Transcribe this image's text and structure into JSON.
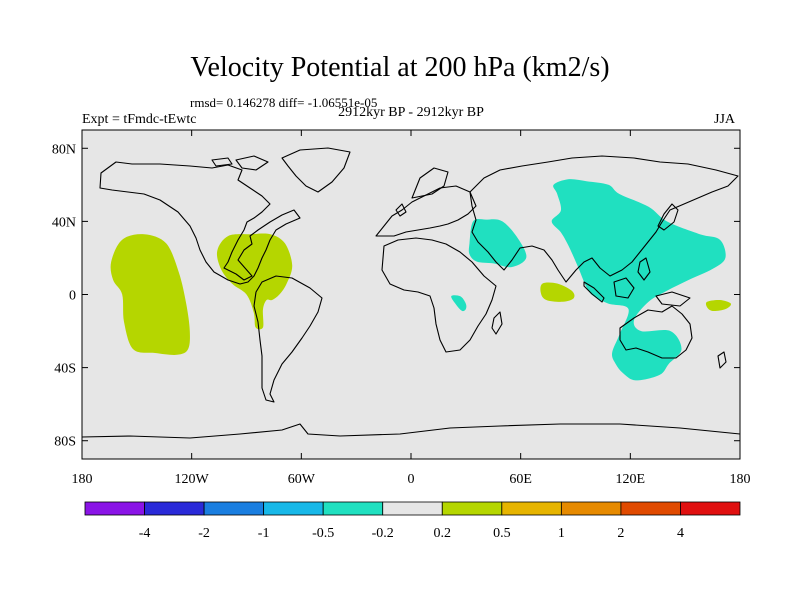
{
  "title": "Velocity Potential at 200 hPa (km2/s)",
  "stats_line": "rmsd= 0.146278 diff= -1.06551e-05",
  "left_label": "Expt = tFmdc-tEwtc",
  "center_label": "2912kyr BP - 2912kyr BP",
  "right_label": "JJA",
  "colors": {
    "ocean_bg": "#e6e6e6",
    "coast": "#000000",
    "positive_fill": "#b5d600",
    "negative_fill": "#20e0c0"
  },
  "chart_data": {
    "type": "filled-contour-map",
    "projection": "cylindrical-equidistant",
    "lon_range": [
      -180,
      180
    ],
    "lat_range": [
      -90,
      90
    ],
    "x_ticks": [
      {
        "lon": -180,
        "label": "180"
      },
      {
        "lon": -120,
        "label": "120W"
      },
      {
        "lon": -60,
        "label": "60W"
      },
      {
        "lon": 0,
        "label": "0"
      },
      {
        "lon": 60,
        "label": "60E"
      },
      {
        "lon": 120,
        "label": "120E"
      },
      {
        "lon": 180,
        "label": "180"
      }
    ],
    "y_ticks": [
      {
        "lat": 80,
        "label": "80N"
      },
      {
        "lat": 40,
        "label": "40N"
      },
      {
        "lat": 0,
        "label": "0"
      },
      {
        "lat": -40,
        "label": "40S"
      },
      {
        "lat": -80,
        "label": "80S"
      }
    ],
    "colorbar": {
      "colors": [
        "#8a14e6",
        "#2a2ad8",
        "#1a7ee0",
        "#18b8e8",
        "#20e0c0",
        "#e6e6e6",
        "#b5d600",
        "#e6b400",
        "#e68a00",
        "#e04a00",
        "#e01010"
      ],
      "labels": [
        "-4",
        "-2",
        "-1",
        "-0.5",
        "-0.2",
        "0.2",
        "0.5",
        "1",
        "2",
        "4"
      ]
    },
    "regions": [
      {
        "name": "central-pacific-positive",
        "level": "0.2 to 0.5",
        "outline": [
          [
            -158,
            30
          ],
          [
            -146,
            33
          ],
          [
            -134,
            28
          ],
          [
            -127,
            12
          ],
          [
            -123,
            -5
          ],
          [
            -121,
            -20
          ],
          [
            -122,
            -30
          ],
          [
            -128,
            -33
          ],
          [
            -140,
            -32
          ],
          [
            -152,
            -30
          ],
          [
            -157,
            -15
          ],
          [
            -158,
            0
          ],
          [
            -163,
            8
          ],
          [
            -164,
            18
          ]
        ]
      },
      {
        "name": "central-america-positive",
        "level": "0.2 to 0.5",
        "outline": [
          [
            -100,
            32
          ],
          [
            -88,
            33
          ],
          [
            -77,
            33
          ],
          [
            -69,
            28
          ],
          [
            -65,
            16
          ],
          [
            -68,
            6
          ],
          [
            -72,
            0
          ],
          [
            -76,
            -3
          ],
          [
            -79,
            -3
          ],
          [
            -81,
            -8
          ],
          [
            -81,
            -18
          ],
          [
            -85,
            -18
          ],
          [
            -86,
            -10
          ],
          [
            -90,
            0
          ],
          [
            -98,
            6
          ],
          [
            -104,
            14
          ],
          [
            -106,
            24
          ]
        ]
      },
      {
        "name": "indian-ocean-positive",
        "level": "0.2 to 0.5",
        "outline": [
          [
            72,
            6
          ],
          [
            80,
            6
          ],
          [
            88,
            2
          ],
          [
            89,
            -2
          ],
          [
            83,
            -4
          ],
          [
            74,
            -3
          ],
          [
            71,
            1
          ]
        ]
      },
      {
        "name": "sw-pacific-positive",
        "level": "0.2 to 0.5",
        "outline": [
          [
            162,
            -4
          ],
          [
            169,
            -3
          ],
          [
            175,
            -5
          ],
          [
            172,
            -8
          ],
          [
            165,
            -9
          ],
          [
            162,
            -7
          ]
        ]
      },
      {
        "name": "north-africa-negative",
        "level": "-0.5 to -0.2",
        "outline": [
          [
            34,
            40
          ],
          [
            41,
            41
          ],
          [
            50,
            40
          ],
          [
            59,
            30
          ],
          [
            63,
            20
          ],
          [
            55,
            15
          ],
          [
            45,
            17
          ],
          [
            36,
            18
          ],
          [
            32,
            22
          ],
          [
            32,
            28
          ]
        ]
      },
      {
        "name": "east-africa-negative",
        "level": "-0.5 to -0.2",
        "outline": [
          [
            22,
            -1
          ],
          [
            27,
            -1
          ],
          [
            30,
            -5
          ],
          [
            30,
            -8
          ],
          [
            28,
            -9
          ],
          [
            25,
            -6
          ]
        ]
      },
      {
        "name": "asia-pacific-negative",
        "level": "-0.5 to -0.2",
        "outline": [
          [
            78,
            60
          ],
          [
            86,
            63
          ],
          [
            96,
            62
          ],
          [
            108,
            60
          ],
          [
            114,
            55
          ],
          [
            130,
            48
          ],
          [
            140,
            40
          ],
          [
            158,
            33
          ],
          [
            169,
            30
          ],
          [
            172,
            20
          ],
          [
            165,
            14
          ],
          [
            152,
            8
          ],
          [
            140,
            2
          ],
          [
            130,
            -4
          ],
          [
            122,
            -14
          ],
          [
            126,
            -20
          ],
          [
            142,
            -20
          ],
          [
            148,
            -30
          ],
          [
            141,
            -38
          ],
          [
            136,
            -44
          ],
          [
            123,
            -47
          ],
          [
            116,
            -43
          ],
          [
            112,
            -38
          ],
          [
            110,
            -32
          ],
          [
            114,
            -22
          ],
          [
            119,
            -8
          ],
          [
            108,
            -5
          ],
          [
            100,
            -1
          ],
          [
            96,
            4
          ],
          [
            91,
            16
          ],
          [
            86,
            27
          ],
          [
            82,
            34
          ],
          [
            77,
            40
          ],
          [
            82,
            46
          ],
          [
            80,
            55
          ]
        ]
      }
    ]
  }
}
